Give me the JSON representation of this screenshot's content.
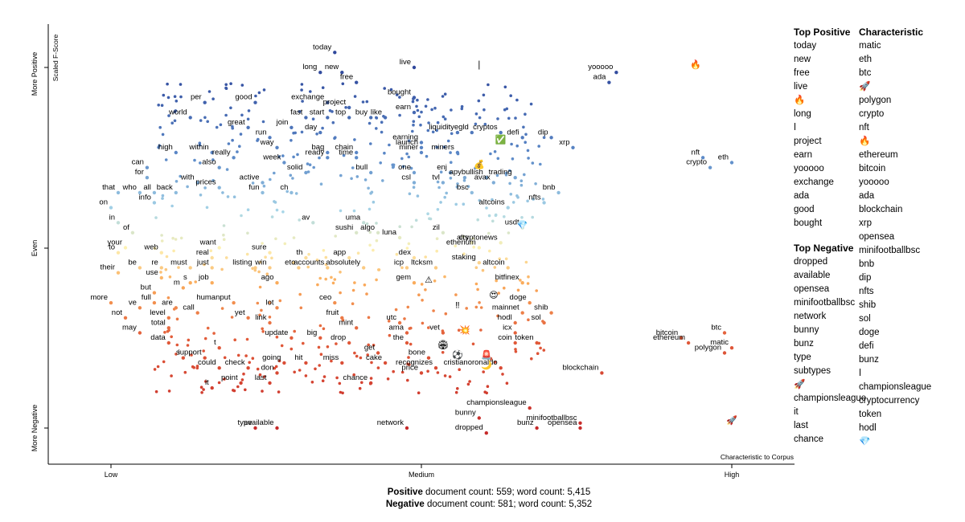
{
  "chart_data": {
    "type": "scatter",
    "xlabel": "Characteristic to Corpus",
    "ylabel": "Scaled F-Score",
    "x_ticks": [
      "Low",
      "Medium",
      "High"
    ],
    "y_ticks": [
      "More Negative",
      "Even",
      "More Positive"
    ],
    "labeled_points": [
      {
        "label": "today",
        "x": 0.41,
        "y": 0.9
      },
      {
        "label": "long",
        "x": 0.39,
        "y": 0.86
      },
      {
        "label": "new",
        "x": 0.42,
        "y": 0.86
      },
      {
        "label": "free",
        "x": 0.44,
        "y": 0.84
      },
      {
        "label": "live",
        "x": 0.52,
        "y": 0.87
      },
      {
        "label": "bought",
        "x": 0.52,
        "y": 0.81
      },
      {
        "label": "earn",
        "x": 0.52,
        "y": 0.78
      },
      {
        "label": "exchange",
        "x": 0.4,
        "y": 0.8
      },
      {
        "label": "project",
        "x": 0.43,
        "y": 0.79
      },
      {
        "label": "buy",
        "x": 0.46,
        "y": 0.77
      },
      {
        "label": "like",
        "x": 0.48,
        "y": 0.77
      },
      {
        "label": "per",
        "x": 0.23,
        "y": 0.8
      },
      {
        "label": "good",
        "x": 0.3,
        "y": 0.8
      },
      {
        "label": "world",
        "x": 0.21,
        "y": 0.77
      },
      {
        "label": "great",
        "x": 0.29,
        "y": 0.75
      },
      {
        "label": "fast",
        "x": 0.37,
        "y": 0.77
      },
      {
        "label": "start",
        "x": 0.4,
        "y": 0.77
      },
      {
        "label": "top",
        "x": 0.43,
        "y": 0.77
      },
      {
        "label": "join",
        "x": 0.35,
        "y": 0.75
      },
      {
        "label": "day",
        "x": 0.39,
        "y": 0.74
      },
      {
        "label": "run",
        "x": 0.32,
        "y": 0.73
      },
      {
        "label": "egld",
        "x": 0.6,
        "y": 0.74
      },
      {
        "label": "cryptos",
        "x": 0.64,
        "y": 0.74
      },
      {
        "label": "liquidity",
        "x": 0.58,
        "y": 0.74
      },
      {
        "label": "defi",
        "x": 0.67,
        "y": 0.73
      },
      {
        "label": "dip",
        "x": 0.71,
        "y": 0.73
      },
      {
        "label": "xrp",
        "x": 0.74,
        "y": 0.71
      },
      {
        "label": "earning",
        "x": 0.53,
        "y": 0.72
      },
      {
        "label": "launch",
        "x": 0.53,
        "y": 0.71
      },
      {
        "label": "miner",
        "x": 0.53,
        "y": 0.7
      },
      {
        "label": "miners",
        "x": 0.58,
        "y": 0.7
      },
      {
        "label": "within",
        "x": 0.24,
        "y": 0.7
      },
      {
        "label": "way",
        "x": 0.33,
        "y": 0.71
      },
      {
        "label": "high",
        "x": 0.19,
        "y": 0.7
      },
      {
        "label": "really",
        "x": 0.27,
        "y": 0.69
      },
      {
        "label": "bag",
        "x": 0.4,
        "y": 0.7
      },
      {
        "label": "chain",
        "x": 0.44,
        "y": 0.7
      },
      {
        "label": "ready",
        "x": 0.4,
        "y": 0.69
      },
      {
        "label": "time",
        "x": 0.44,
        "y": 0.69
      },
      {
        "label": "week",
        "x": 0.34,
        "y": 0.68
      },
      {
        "label": "also",
        "x": 0.25,
        "y": 0.67
      },
      {
        "label": "can",
        "x": 0.15,
        "y": 0.67
      },
      {
        "label": "solid",
        "x": 0.37,
        "y": 0.66
      },
      {
        "label": "bull",
        "x": 0.46,
        "y": 0.66
      },
      {
        "label": "one",
        "x": 0.52,
        "y": 0.66
      },
      {
        "label": "enj",
        "x": 0.57,
        "y": 0.66
      },
      {
        "label": "bullish",
        "x": 0.62,
        "y": 0.65
      },
      {
        "label": "apy",
        "x": 0.59,
        "y": 0.65
      },
      {
        "label": "trading",
        "x": 0.66,
        "y": 0.65
      },
      {
        "label": "for",
        "x": 0.15,
        "y": 0.65
      },
      {
        "label": "active",
        "x": 0.31,
        "y": 0.64
      },
      {
        "label": "csl",
        "x": 0.52,
        "y": 0.64
      },
      {
        "label": "tvl",
        "x": 0.56,
        "y": 0.64
      },
      {
        "label": "avax",
        "x": 0.63,
        "y": 0.64
      },
      {
        "label": "with",
        "x": 0.22,
        "y": 0.64
      },
      {
        "label": "prices",
        "x": 0.25,
        "y": 0.63
      },
      {
        "label": "fun",
        "x": 0.31,
        "y": 0.62
      },
      {
        "label": "ch",
        "x": 0.35,
        "y": 0.62
      },
      {
        "label": "bsc",
        "x": 0.6,
        "y": 0.62
      },
      {
        "label": "bnb",
        "x": 0.72,
        "y": 0.62
      },
      {
        "label": "that",
        "x": 0.11,
        "y": 0.62
      },
      {
        "label": "who",
        "x": 0.14,
        "y": 0.62
      },
      {
        "label": "all",
        "x": 0.16,
        "y": 0.62
      },
      {
        "label": "back",
        "x": 0.19,
        "y": 0.62
      },
      {
        "label": "info",
        "x": 0.16,
        "y": 0.6
      },
      {
        "label": "nfts",
        "x": 0.7,
        "y": 0.6
      },
      {
        "label": "on",
        "x": 0.1,
        "y": 0.59
      },
      {
        "label": "altcoins",
        "x": 0.65,
        "y": 0.59
      },
      {
        "label": "in",
        "x": 0.11,
        "y": 0.56
      },
      {
        "label": "av",
        "x": 0.38,
        "y": 0.56
      },
      {
        "label": "uma",
        "x": 0.45,
        "y": 0.56
      },
      {
        "label": "usdt",
        "x": 0.67,
        "y": 0.55
      },
      {
        "label": "of",
        "x": 0.13,
        "y": 0.54
      },
      {
        "label": "sushi",
        "x": 0.44,
        "y": 0.54
      },
      {
        "label": "algo",
        "x": 0.47,
        "y": 0.54
      },
      {
        "label": "zil",
        "x": 0.56,
        "y": 0.54
      },
      {
        "label": "luna",
        "x": 0.5,
        "y": 0.53
      },
      {
        "label": "alts",
        "x": 0.6,
        "y": 0.52
      },
      {
        "label": "cryptonews",
        "x": 0.64,
        "y": 0.52
      },
      {
        "label": "your",
        "x": 0.12,
        "y": 0.51
      },
      {
        "label": "want",
        "x": 0.25,
        "y": 0.51
      },
      {
        "label": "web",
        "x": 0.17,
        "y": 0.5
      },
      {
        "label": "sure",
        "x": 0.32,
        "y": 0.5
      },
      {
        "label": "etherium",
        "x": 0.61,
        "y": 0.51
      },
      {
        "label": "to",
        "x": 0.11,
        "y": 0.5
      },
      {
        "label": "real",
        "x": 0.24,
        "y": 0.49
      },
      {
        "label": "th",
        "x": 0.37,
        "y": 0.49
      },
      {
        "label": "app",
        "x": 0.43,
        "y": 0.49
      },
      {
        "label": "dex",
        "x": 0.52,
        "y": 0.49
      },
      {
        "label": "staking",
        "x": 0.61,
        "y": 0.48
      },
      {
        "label": "be",
        "x": 0.14,
        "y": 0.47
      },
      {
        "label": "re",
        "x": 0.17,
        "y": 0.47
      },
      {
        "label": "must",
        "x": 0.21,
        "y": 0.47
      },
      {
        "label": "just",
        "x": 0.24,
        "y": 0.47
      },
      {
        "label": "listing",
        "x": 0.3,
        "y": 0.47
      },
      {
        "label": "win",
        "x": 0.32,
        "y": 0.47
      },
      {
        "label": "eto",
        "x": 0.36,
        "y": 0.47
      },
      {
        "label": "accounts",
        "x": 0.4,
        "y": 0.47
      },
      {
        "label": "absolutely",
        "x": 0.45,
        "y": 0.47
      },
      {
        "label": "icp",
        "x": 0.51,
        "y": 0.47
      },
      {
        "label": "ltcksm",
        "x": 0.55,
        "y": 0.47
      },
      {
        "label": "altcoin",
        "x": 0.65,
        "y": 0.47
      },
      {
        "label": "their",
        "x": 0.11,
        "y": 0.46
      },
      {
        "label": "use",
        "x": 0.17,
        "y": 0.45
      },
      {
        "label": "job",
        "x": 0.24,
        "y": 0.44
      },
      {
        "label": "s",
        "x": 0.21,
        "y": 0.44
      },
      {
        "label": "ago",
        "x": 0.33,
        "y": 0.44
      },
      {
        "label": "gem",
        "x": 0.52,
        "y": 0.44
      },
      {
        "label": "bitfinex",
        "x": 0.67,
        "y": 0.44
      },
      {
        "label": "m",
        "x": 0.2,
        "y": 0.43
      },
      {
        "label": "but",
        "x": 0.16,
        "y": 0.42
      },
      {
        "label": "doge",
        "x": 0.68,
        "y": 0.4
      },
      {
        "label": "more",
        "x": 0.1,
        "y": 0.4
      },
      {
        "label": "ve",
        "x": 0.14,
        "y": 0.39
      },
      {
        "label": "full",
        "x": 0.16,
        "y": 0.4
      },
      {
        "label": "humanput",
        "x": 0.27,
        "y": 0.4
      },
      {
        "label": "ceo",
        "x": 0.41,
        "y": 0.4
      },
      {
        "label": "are",
        "x": 0.19,
        "y": 0.39
      },
      {
        "label": "lot",
        "x": 0.33,
        "y": 0.39
      },
      {
        "label": "mainnet",
        "x": 0.67,
        "y": 0.38
      },
      {
        "label": "shib",
        "x": 0.71,
        "y": 0.38
      },
      {
        "label": "call",
        "x": 0.22,
        "y": 0.38
      },
      {
        "label": "fruit",
        "x": 0.42,
        "y": 0.37
      },
      {
        "label": "level",
        "x": 0.18,
        "y": 0.37
      },
      {
        "label": "not",
        "x": 0.12,
        "y": 0.37
      },
      {
        "label": "yet",
        "x": 0.29,
        "y": 0.37
      },
      {
        "label": "link",
        "x": 0.32,
        "y": 0.36
      },
      {
        "label": "utc",
        "x": 0.5,
        "y": 0.36
      },
      {
        "label": "hodl",
        "x": 0.66,
        "y": 0.36
      },
      {
        "label": "sol",
        "x": 0.7,
        "y": 0.36
      },
      {
        "label": "total",
        "x": 0.18,
        "y": 0.35
      },
      {
        "label": "mint",
        "x": 0.44,
        "y": 0.35
      },
      {
        "label": "ama",
        "x": 0.51,
        "y": 0.34
      },
      {
        "label": "vet",
        "x": 0.56,
        "y": 0.34
      },
      {
        "label": "icx",
        "x": 0.66,
        "y": 0.34
      },
      {
        "label": "may",
        "x": 0.14,
        "y": 0.34
      },
      {
        "label": "update",
        "x": 0.35,
        "y": 0.33
      },
      {
        "label": "big",
        "x": 0.39,
        "y": 0.33
      },
      {
        "label": "coin",
        "x": 0.66,
        "y": 0.32
      },
      {
        "label": "token",
        "x": 0.69,
        "y": 0.32
      },
      {
        "label": "data",
        "x": 0.18,
        "y": 0.32
      },
      {
        "label": "drop",
        "x": 0.43,
        "y": 0.32
      },
      {
        "label": "the",
        "x": 0.51,
        "y": 0.32
      },
      {
        "label": "t",
        "x": 0.25,
        "y": 0.31
      },
      {
        "label": "get",
        "x": 0.47,
        "y": 0.3
      },
      {
        "label": "i",
        "x": 0.2,
        "y": 0.29
      },
      {
        "label": "support",
        "x": 0.23,
        "y": 0.29
      },
      {
        "label": "going",
        "x": 0.34,
        "y": 0.28
      },
      {
        "label": "hit",
        "x": 0.37,
        "y": 0.28
      },
      {
        "label": "bone",
        "x": 0.54,
        "y": 0.29
      },
      {
        "label": "cake",
        "x": 0.48,
        "y": 0.28
      },
      {
        "label": "miss",
        "x": 0.42,
        "y": 0.28
      },
      {
        "label": "could",
        "x": 0.25,
        "y": 0.27
      },
      {
        "label": "check",
        "x": 0.29,
        "y": 0.27
      },
      {
        "label": "recognizes",
        "x": 0.55,
        "y": 0.27
      },
      {
        "label": "cristianoronaldo",
        "x": 0.64,
        "y": 0.27
      },
      {
        "label": "don",
        "x": 0.33,
        "y": 0.26
      },
      {
        "label": "price",
        "x": 0.53,
        "y": 0.26
      },
      {
        "label": "point",
        "x": 0.28,
        "y": 0.24
      },
      {
        "label": "last",
        "x": 0.32,
        "y": 0.24
      },
      {
        "label": "chance",
        "x": 0.46,
        "y": 0.24
      },
      {
        "label": "it",
        "x": 0.24,
        "y": 0.23
      },
      {
        "label": "blockchain",
        "x": 0.78,
        "y": 0.26
      },
      {
        "label": "championsleague",
        "x": 0.68,
        "y": 0.19
      },
      {
        "label": "bunny",
        "x": 0.61,
        "y": 0.17
      },
      {
        "label": "minifootballbsc",
        "x": 0.75,
        "y": 0.16
      },
      {
        "label": "type",
        "x": 0.3,
        "y": 0.15
      },
      {
        "label": "available",
        "x": 0.33,
        "y": 0.15
      },
      {
        "label": "network",
        "x": 0.51,
        "y": 0.15
      },
      {
        "label": "bunz",
        "x": 0.69,
        "y": 0.15
      },
      {
        "label": "opensea",
        "x": 0.75,
        "y": 0.15
      },
      {
        "label": "dropped",
        "x": 0.62,
        "y": 0.14
      },
      {
        "label": "yooooo",
        "x": 0.8,
        "y": 0.86
      },
      {
        "label": "ada",
        "x": 0.79,
        "y": 0.84
      },
      {
        "label": "nft",
        "x": 0.92,
        "y": 0.69
      },
      {
        "label": "eth",
        "x": 0.96,
        "y": 0.68
      },
      {
        "label": "crypto",
        "x": 0.93,
        "y": 0.67
      },
      {
        "label": "btc",
        "x": 0.95,
        "y": 0.34
      },
      {
        "label": "bitcoin",
        "x": 0.89,
        "y": 0.33
      },
      {
        "label": "ethereum",
        "x": 0.9,
        "y": 0.32
      },
      {
        "label": "matic",
        "x": 0.96,
        "y": 0.31
      },
      {
        "label": "polygon",
        "x": 0.95,
        "y": 0.3
      }
    ],
    "emoji_points": [
      {
        "symbol": "🔥",
        "x": 0.91,
        "y": 0.87
      },
      {
        "symbol": "❘",
        "x": 0.61,
        "y": 0.87
      },
      {
        "symbol": "✅",
        "x": 0.64,
        "y": 0.72
      },
      {
        "symbol": "💰",
        "x": 0.61,
        "y": 0.67
      },
      {
        "symbol": "💎",
        "x": 0.67,
        "y": 0.55
      },
      {
        "symbol": "⚠",
        "x": 0.54,
        "y": 0.44
      },
      {
        "symbol": "😍",
        "x": 0.63,
        "y": 0.41
      },
      {
        "symbol": "‼",
        "x": 0.58,
        "y": 0.39
      },
      {
        "symbol": "💥",
        "x": 0.59,
        "y": 0.34
      },
      {
        "symbol": "🏟",
        "x": 0.56,
        "y": 0.31
      },
      {
        "symbol": "⚽",
        "x": 0.58,
        "y": 0.29
      },
      {
        "symbol": "🚨",
        "x": 0.62,
        "y": 0.29
      },
      {
        "symbol": "🌙",
        "x": 0.62,
        "y": 0.27
      },
      {
        "symbol": "🚀",
        "x": 0.96,
        "y": 0.16
      }
    ]
  },
  "top_positive": {
    "title": "Top Positive",
    "items": [
      "today",
      "new",
      "free",
      "live",
      "🔥",
      "long",
      "ǀ",
      "project",
      "earn",
      "yooooo",
      "exchange",
      "ada",
      "good",
      "bought"
    ]
  },
  "top_negative": {
    "title": "Top Negative",
    "items": [
      "dropped",
      "available",
      "opensea",
      "minifootballbsc",
      "network",
      "bunny",
      "bunz",
      "type",
      "subtypes",
      "🚀",
      "championsleague",
      "it",
      "last",
      "chance"
    ]
  },
  "characteristic": {
    "title": "Characteristic",
    "items": [
      "matic",
      "eth",
      "btc",
      "🚀",
      "polygon",
      "crypto",
      "nft",
      "🔥",
      "ethereum",
      "bitcoin",
      "yooooo",
      "ada",
      "blockchain",
      "xrp",
      "opensea",
      "minifootballbsc",
      "bnb",
      "dip",
      "nfts",
      "shib",
      "sol",
      "doge",
      "defi",
      "bunz",
      "ǀ",
      "championsleague",
      "cryptocurrency",
      "token",
      "hodl",
      "💎"
    ]
  },
  "footer": {
    "positive_label": "Positive",
    "positive_text": " document count: 559; word count: 5,415",
    "negative_label": "Negative",
    "negative_text": " document count: 581; word count: 5,352"
  },
  "colors": {
    "positive": "#3f5aa8",
    "neutral": "#fdf1b3",
    "negative": "#c62a2a"
  }
}
